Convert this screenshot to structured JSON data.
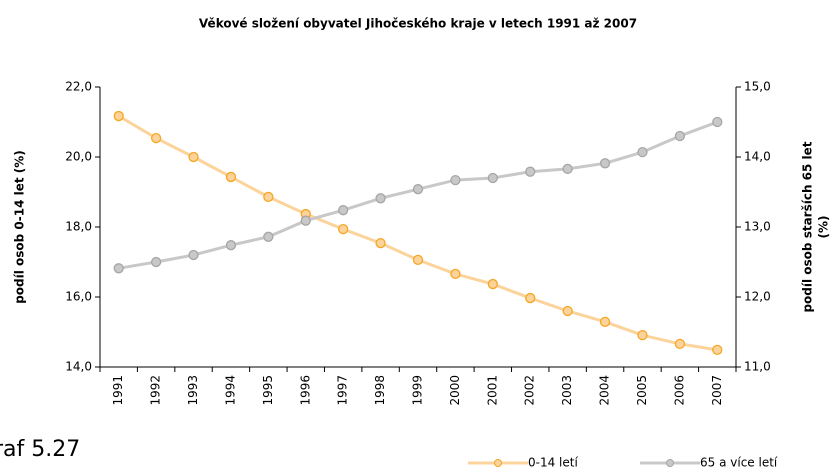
{
  "chart_data": {
    "type": "line",
    "title": "Věkové složení obyvatel Jihočeského kraje v letech 1991 až 2007",
    "ylabel": "podíl osob 0-14 let (%)",
    "y2label": [
      "podíl osob starších 65 let",
      "(%)"
    ],
    "categories": [
      "1991",
      "1992",
      "1993",
      "1994",
      "1995",
      "1996",
      "1997",
      "1998",
      "1999",
      "2000",
      "2001",
      "2002",
      "2003",
      "2004",
      "2005",
      "2006",
      "2007"
    ],
    "series": [
      {
        "name": "0-14 letí",
        "color": "#f5a623",
        "line_color": "#fbd39b",
        "values": [
          21.17,
          20.54,
          20.0,
          19.43,
          18.86,
          18.37,
          17.94,
          17.54,
          17.06,
          16.66,
          16.37,
          15.97,
          15.6,
          15.29,
          14.91,
          14.66,
          14.49
        ]
      },
      {
        "name": "65 a více letí",
        "color": "#a6a6a6",
        "line_color": "#c8c8c8",
        "axis": "y2",
        "values": [
          12.41,
          12.5,
          12.6,
          12.74,
          12.86,
          13.09,
          13.24,
          13.41,
          13.54,
          13.67,
          13.7,
          13.79,
          13.83,
          13.91,
          14.07,
          14.3,
          14.5
        ]
      }
    ],
    "ylim": [
      14,
      22
    ],
    "yticks": [
      {
        "value": 14,
        "label": "14,0"
      },
      {
        "value": 16,
        "label": "16,0"
      },
      {
        "value": 18,
        "label": "18,0"
      },
      {
        "value": 20,
        "label": "20,0"
      },
      {
        "value": 22,
        "label": "22,0"
      }
    ],
    "y2lim": [
      11,
      15
    ],
    "y2ticks": [
      {
        "value": 11,
        "label": "11,0"
      },
      {
        "value": 12,
        "label": "12,0"
      },
      {
        "value": 13,
        "label": "13,0"
      },
      {
        "value": 14,
        "label": "14,0"
      },
      {
        "value": 15,
        "label": "15,0"
      }
    ],
    "caption": "raf 5.27"
  }
}
